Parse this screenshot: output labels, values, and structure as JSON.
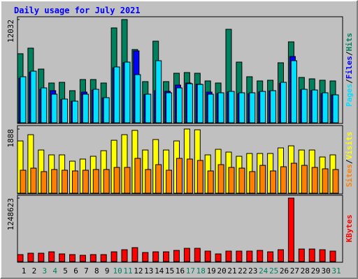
{
  "chart_data": [
    {
      "type": "bar",
      "title": "Daily usage for July 2021",
      "legend_separator": "/",
      "ylim": [
        0,
        12032
      ],
      "yticks": [
        12032
      ],
      "series": [
        {
          "name": "Hits",
          "color": "#00805c",
          "values": [
            8049,
            8699,
            6260,
            4634,
            4715,
            3740,
            5041,
            5041,
            4634,
            11057,
            12032,
            8537,
            4797,
            9512,
            4797,
            5772,
            5854,
            5772,
            4878,
            4634,
            10894,
            7073,
            5366,
            4878,
            4959,
            6992,
            9431,
            5285,
            5122,
            4959,
            4878
          ]
        },
        {
          "name": "Files",
          "color": "#0000ff",
          "values": [
            5200,
            5900,
            3900,
            3740,
            2700,
            2500,
            3577,
            3800,
            2900,
            6400,
            7000,
            8375,
            3300,
            3740,
            3659,
            4390,
            4634,
            4500,
            3577,
            3400,
            3600,
            3400,
            3400,
            3600,
            3700,
            4600,
            7724,
            3850,
            3750,
            3400,
            3250
          ]
        },
        {
          "name": "Pages",
          "color": "#00e0ff",
          "values": [
            5366,
            6016,
            4065,
            3333,
            2764,
            2520,
            3333,
            3902,
            2927,
            6504,
            7073,
            5610,
            3333,
            7236,
            3496,
            4065,
            4553,
            4472,
            3333,
            3496,
            3659,
            3496,
            3496,
            3659,
            3740,
            4715,
            7236,
            3902,
            3821,
            3496,
            3252
          ]
        }
      ]
    },
    {
      "type": "bar",
      "ylim": [
        0,
        1888
      ],
      "yticks": [
        1888
      ],
      "series": [
        {
          "name": "Visits",
          "color": "#ffff00",
          "values": [
            1538,
            1722,
            1271,
            1128,
            1128,
            943,
            1005,
            1087,
            1251,
            1558,
            1722,
            1849,
            1271,
            1579,
            1271,
            1538,
            1888,
            1866,
            1128,
            1292,
            1210,
            1087,
            1169,
            1169,
            1169,
            1333,
            1394,
            1271,
            1271,
            1066,
            1128
          ]
        },
        {
          "name": "Sites",
          "color": "#ff8000",
          "values": [
            677,
            738,
            636,
            697,
            677,
            656,
            677,
            697,
            697,
            759,
            759,
            1025,
            697,
            841,
            677,
            1025,
            1005,
            964,
            656,
            841,
            759,
            738,
            636,
            820,
            656,
            779,
            882,
            820,
            759,
            718,
            697
          ]
        }
      ]
    },
    {
      "type": "bar",
      "ylim": [
        0,
        1248623
      ],
      "yticks": [
        1248623
      ],
      "categories": [
        "1",
        "2",
        "3",
        "4",
        "5",
        "6",
        "7",
        "8",
        "9",
        "10",
        "11",
        "12",
        "13",
        "14",
        "15",
        "16",
        "17",
        "18",
        "19",
        "20",
        "21",
        "22",
        "23",
        "24",
        "25",
        "26",
        "27",
        "28",
        "29",
        "30",
        "31"
      ],
      "category_colors": [
        "#000000",
        "#000000",
        "#00805c",
        "#00805c",
        "#000000",
        "#000000",
        "#000000",
        "#000000",
        "#000000",
        "#00805c",
        "#00805c",
        "#000000",
        "#000000",
        "#000000",
        "#000000",
        "#000000",
        "#00805c",
        "#00805c",
        "#000000",
        "#000000",
        "#000000",
        "#000000",
        "#000000",
        "#00805c",
        "#00805c",
        "#000000",
        "#000000",
        "#000000",
        "#000000",
        "#000000",
        "#00805c"
      ],
      "series": [
        {
          "name": "KBytes",
          "color": "#ff0000",
          "values": [
            137210,
            164652,
            164652,
            192094,
            150931,
            137210,
            123489,
            137210,
            137210,
            192094,
            233257,
            274420,
            178373,
            192094,
            192094,
            219536,
            260699,
            260699,
            205815,
            150931,
            205815,
            205815,
            205815,
            219536,
            192094,
            233257,
            1248623,
            246978,
            246978,
            233257,
            205815
          ]
        }
      ]
    }
  ]
}
